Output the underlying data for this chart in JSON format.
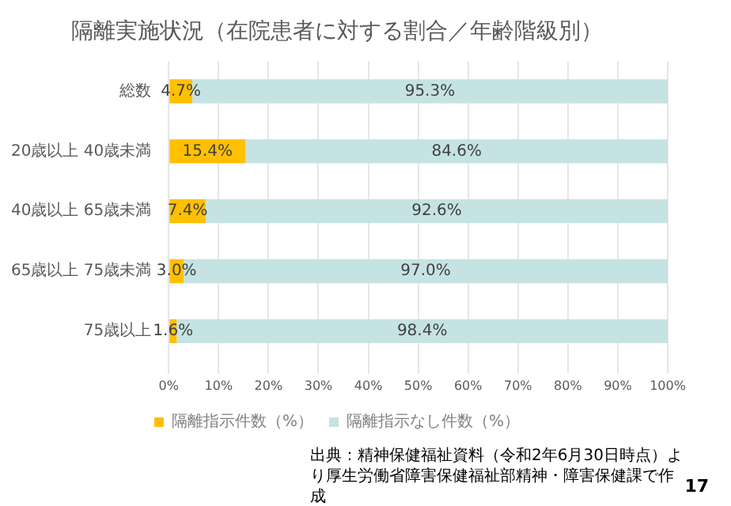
{
  "chart_data": {
    "type": "bar",
    "orientation": "horizontal",
    "stacked": true,
    "title": "隔離実施状況（在院患者に対する割合／年齢階級別）",
    "categories": [
      "総数",
      "20歳以上 40歳未満",
      "40歳以上 65歳未満",
      "65歳以上 75歳未満",
      "75歳以上"
    ],
    "series": [
      {
        "name": "隔離指示件数（%）",
        "color": "#ffc000",
        "values": [
          4.7,
          15.4,
          7.4,
          3.0,
          1.6
        ],
        "value_labels": [
          "4.7%",
          "15.4%",
          "7.4%",
          "3.0%",
          "1.6%"
        ]
      },
      {
        "name": "隔離指示なし件数（%）",
        "color": "#c5e3e2",
        "values": [
          95.3,
          84.6,
          92.6,
          97.0,
          98.4
        ],
        "value_labels": [
          "95.3%",
          "84.6%",
          "92.6%",
          "97.0%",
          "98.4%"
        ]
      }
    ],
    "xlim": [
      0,
      100
    ],
    "xticks": [
      {
        "value": 0,
        "label": "0%"
      },
      {
        "value": 10,
        "label": "10%"
      },
      {
        "value": 20,
        "label": "20%"
      },
      {
        "value": 30,
        "label": "30%"
      },
      {
        "value": 40,
        "label": "40%"
      },
      {
        "value": 50,
        "label": "50%"
      },
      {
        "value": 60,
        "label": "60%"
      },
      {
        "value": 70,
        "label": "70%"
      },
      {
        "value": 80,
        "label": "80%"
      },
      {
        "value": 90,
        "label": "90%"
      },
      {
        "value": 100,
        "label": "100%"
      }
    ],
    "grid": "x",
    "legend": "bottom",
    "annotations": [
      "出典：精神保健福祉資料（令和2年6月30日時点）より厚生労働省障害保健福祉部精神・障害保健課で作成",
      "17"
    ]
  }
}
